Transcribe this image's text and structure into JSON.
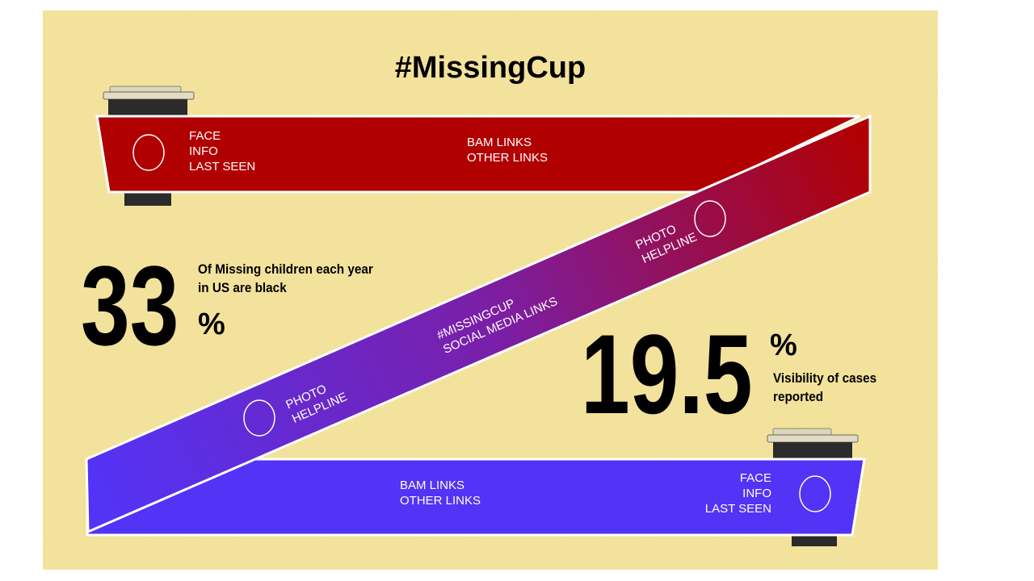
{
  "title": "#MissingCup",
  "colors": {
    "background": "#f6e59e",
    "red": "#b10000",
    "blue": "#5333f5",
    "cup_dark": "#2b2b2b",
    "cup_lid": "#dcd6bf"
  },
  "top_band": {
    "face": "FACE",
    "info": "INFO",
    "last_seen": "LAST SEEN",
    "bam_links": "BAM LINKS",
    "other_links": "OTHER LINKS"
  },
  "diagonal_band": {
    "photo_upper": "PHOTO",
    "helpline_upper": "HELPLINE",
    "hashtag": "#MISSINGCUP",
    "social_media": "SOCIAL MEDIA LINKS",
    "photo_lower": "PHOTO",
    "helpline_lower": "HELPLINE"
  },
  "bottom_band": {
    "bam_links": "BAM LINKS",
    "other_links": "OTHER LINKS",
    "face": "FACE",
    "info": "INFO",
    "last_seen": "LAST SEEN"
  },
  "stat_left": {
    "value": "33",
    "unit": "%",
    "caption_line1": "Of Missing children each year",
    "caption_line2": "in US are black"
  },
  "stat_right": {
    "value": "19.5",
    "unit": "%",
    "caption_line1": "Visibility of cases",
    "caption_line2": "reported"
  }
}
